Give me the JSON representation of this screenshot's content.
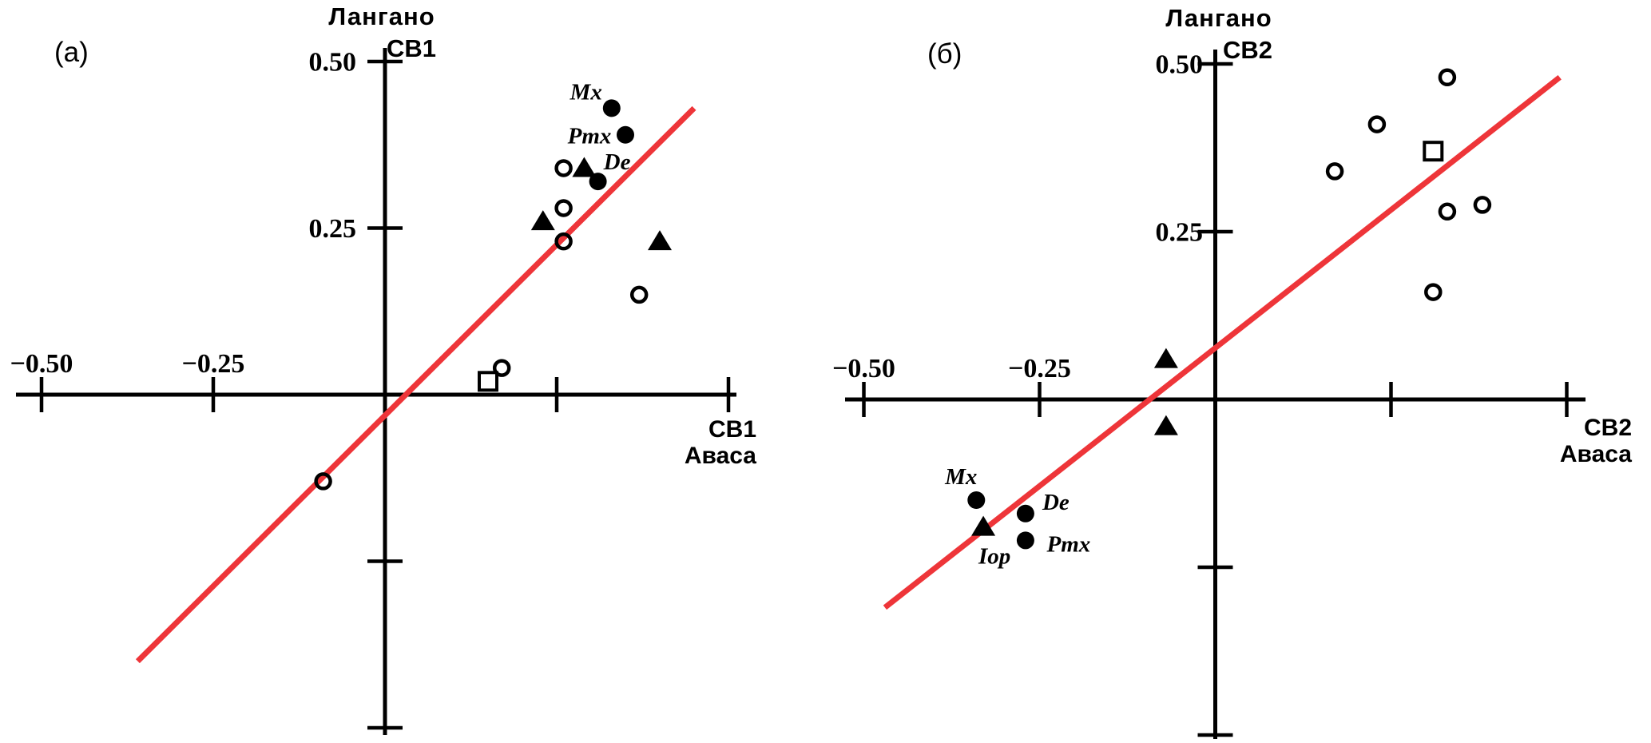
{
  "figure": {
    "background": "#ffffff",
    "marker_color": "#000000",
    "axis_color": "#000000",
    "regression_line_color": "#ee3539"
  },
  "chart_data": [
    {
      "type": "scatter",
      "panel_label": "(а)",
      "y_axis_title": {
        "lake": "Лангано",
        "component": "СВ1"
      },
      "x_axis_title": {
        "component": "СВ1",
        "lake": "Аваса"
      },
      "xlim": [
        -0.55,
        0.52
      ],
      "ylim": [
        -0.52,
        0.52
      ],
      "grid": false,
      "legend": "none",
      "x_ticks": [
        {
          "v": -0.5,
          "label": "−0.50"
        },
        {
          "v": -0.25,
          "label": "−0.25"
        },
        {
          "v": 0.25
        },
        {
          "v": 0.5
        }
      ],
      "y_ticks": [
        {
          "v": 0.5,
          "label": "0.50"
        },
        {
          "v": 0.25,
          "label": "0.25"
        },
        {
          "v": -0.25
        },
        {
          "v": -0.5
        }
      ],
      "regression_line": {
        "x1": -0.36,
        "y1": -0.4,
        "x2": 0.45,
        "y2": 0.43
      },
      "series": [
        {
          "name": "labelled-taxa-filled-circle",
          "marker": "filled_circle",
          "points": [
            {
              "x": 0.33,
              "y": 0.43,
              "label": "Mx",
              "ldx": -32,
              "ldy": -20
            },
            {
              "x": 0.35,
              "y": 0.39,
              "label": "Pmx",
              "ldx": -45,
              "ldy": 2
            },
            {
              "x": 0.31,
              "y": 0.32,
              "label": "De",
              "ldx": 24,
              "ldy": -24
            }
          ]
        },
        {
          "name": "open-circle",
          "marker": "open_circle",
          "points": [
            {
              "x": 0.26,
              "y": 0.34
            },
            {
              "x": 0.26,
              "y": 0.28
            },
            {
              "x": 0.26,
              "y": 0.23
            },
            {
              "x": 0.37,
              "y": 0.15
            },
            {
              "x": 0.17,
              "y": 0.04
            },
            {
              "x": -0.09,
              "y": -0.13
            }
          ]
        },
        {
          "name": "filled-triangle",
          "marker": "filled_triangle",
          "points": [
            {
              "x": 0.29,
              "y": 0.34
            },
            {
              "x": 0.23,
              "y": 0.26
            },
            {
              "x": 0.4,
              "y": 0.23
            }
          ]
        },
        {
          "name": "open-square",
          "marker": "open_square",
          "points": [
            {
              "x": 0.15,
              "y": 0.02
            }
          ]
        }
      ]
    },
    {
      "type": "scatter",
      "panel_label": "(б)",
      "y_axis_title": {
        "lake": "Лангано",
        "component": "СВ2"
      },
      "x_axis_title": {
        "component": "СВ2",
        "lake": "Аваса"
      },
      "xlim": [
        -0.55,
        0.52
      ],
      "ylim": [
        -0.52,
        0.52
      ],
      "grid": false,
      "legend": "none",
      "x_ticks": [
        {
          "v": -0.5,
          "label": "−0.50"
        },
        {
          "v": -0.25,
          "label": "−0.25"
        },
        {
          "v": 0.25
        },
        {
          "v": 0.5
        }
      ],
      "y_ticks": [
        {
          "v": 0.5,
          "label": "0.50"
        },
        {
          "v": 0.25,
          "label": "0.25"
        },
        {
          "v": -0.25
        },
        {
          "v": -0.5
        }
      ],
      "regression_line": {
        "x1": -0.47,
        "y1": -0.31,
        "x2": 0.49,
        "y2": 0.48
      },
      "series": [
        {
          "name": "labelled-taxa-filled-circle",
          "marker": "filled_circle",
          "points": [
            {
              "x": -0.34,
              "y": -0.15,
              "label": "Mx",
              "ldx": -19,
              "ldy": -29
            },
            {
              "x": -0.27,
              "y": -0.17,
              "label": "De",
              "ldx": 38,
              "ldy": -14
            },
            {
              "x": -0.27,
              "y": -0.21,
              "label": "Pmx",
              "ldx": 54,
              "ldy": 5
            }
          ]
        },
        {
          "name": "open-circle",
          "marker": "open_circle",
          "points": [
            {
              "x": 0.17,
              "y": 0.34
            },
            {
              "x": 0.23,
              "y": 0.41
            },
            {
              "x": 0.33,
              "y": 0.48
            },
            {
              "x": 0.33,
              "y": 0.28
            },
            {
              "x": 0.38,
              "y": 0.29
            },
            {
              "x": 0.31,
              "y": 0.16
            }
          ]
        },
        {
          "name": "filled-triangle",
          "marker": "filled_triangle",
          "points": [
            {
              "x": -0.33,
              "y": -0.19,
              "label": "Iop",
              "ldx": 14,
              "ldy": 37
            },
            {
              "x": -0.07,
              "y": 0.06
            },
            {
              "x": -0.07,
              "y": -0.04
            }
          ]
        },
        {
          "name": "open-square",
          "marker": "open_square",
          "points": [
            {
              "x": 0.31,
              "y": 0.37
            }
          ]
        }
      ]
    }
  ]
}
